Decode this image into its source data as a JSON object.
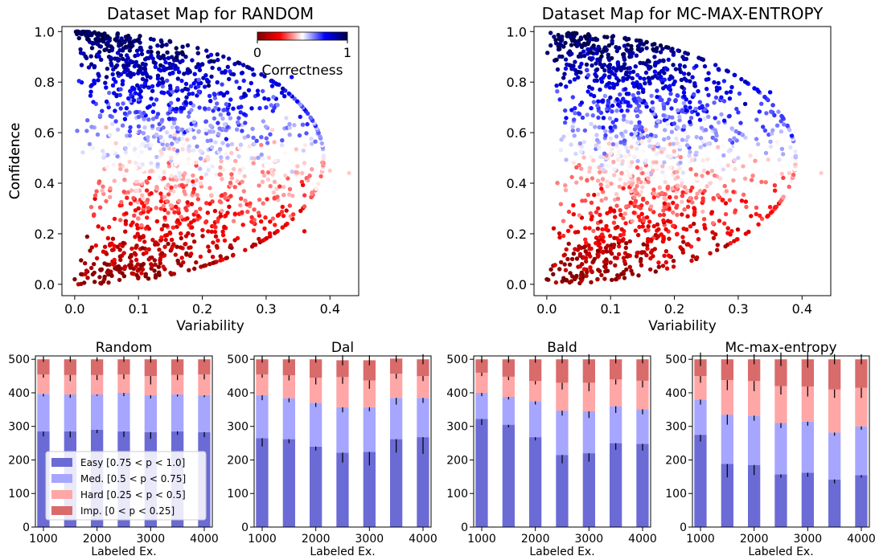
{
  "colors": {
    "easy": "#6b6bd6",
    "medium": "#a6a6ff",
    "hard": "#ffa6a6",
    "impossible": "#d96b6b",
    "errbar": "#000000"
  },
  "colorbar": {
    "label": "Correctness",
    "min_label": "0",
    "max_label": "1",
    "colormap": "seismic"
  },
  "chart_data": [
    {
      "type": "scatter",
      "title": "Dataset Map for RANDOM",
      "xlabel": "Variability",
      "ylabel": "Confidence",
      "xlim": [
        -0.02,
        0.445
      ],
      "ylim": [
        -0.045,
        1.02
      ],
      "xticks": [
        0.0,
        0.1,
        0.2,
        0.3,
        0.4
      ],
      "xtick_labels": [
        "0.0",
        "0.1",
        "0.2",
        "0.3",
        "0.4"
      ],
      "yticks": [
        0.0,
        0.2,
        0.4,
        0.6,
        0.8,
        1.0
      ],
      "ytick_labels": [
        "0.0",
        "0.2",
        "0.4",
        "0.6",
        "0.8",
        "1.0"
      ],
      "color_by": "Correctness",
      "seed": 11,
      "num_points": 1500,
      "points": [
        [
          0.0,
          0.02,
          0.0
        ],
        [
          0.01,
          0.04,
          0.0
        ],
        [
          0.02,
          0.05,
          0.0
        ],
        [
          0.03,
          0.08,
          0.05
        ],
        [
          0.05,
          0.12,
          0.08
        ],
        [
          0.06,
          0.18,
          0.1
        ],
        [
          0.08,
          0.25,
          0.14
        ],
        [
          0.1,
          0.3,
          0.2
        ],
        [
          0.12,
          0.36,
          0.25
        ],
        [
          0.14,
          0.42,
          0.3
        ],
        [
          0.16,
          0.47,
          0.4
        ],
        [
          0.2,
          0.52,
          0.55
        ],
        [
          0.24,
          0.55,
          0.6
        ],
        [
          0.28,
          0.58,
          0.65
        ],
        [
          0.3,
          0.47,
          0.5
        ],
        [
          0.33,
          0.43,
          0.45
        ],
        [
          0.36,
          0.48,
          0.45
        ],
        [
          0.4,
          0.45,
          0.45
        ],
        [
          0.43,
          0.44,
          0.45
        ],
        [
          0.36,
          0.21,
          0.2
        ],
        [
          0.02,
          0.97,
          1.0
        ],
        [
          0.05,
          0.95,
          1.0
        ],
        [
          0.08,
          0.94,
          1.0
        ],
        [
          0.12,
          0.92,
          1.0
        ],
        [
          0.16,
          0.9,
          1.0
        ],
        [
          0.2,
          0.87,
          0.95
        ],
        [
          0.24,
          0.86,
          0.85
        ],
        [
          0.28,
          0.83,
          0.8
        ],
        [
          0.32,
          0.79,
          0.75
        ],
        [
          0.34,
          0.82,
          0.75
        ],
        [
          0.3,
          0.7,
          0.7
        ],
        [
          0.15,
          0.75,
          0.85
        ],
        [
          0.1,
          0.6,
          0.75
        ],
        [
          0.05,
          0.82,
          0.95
        ]
      ]
    },
    {
      "type": "scatter",
      "title": "Dataset Map for MC-MAX-ENTROPY",
      "xlabel": "Variability",
      "ylabel": "Confidence",
      "xlim": [
        -0.02,
        0.445
      ],
      "ylim": [
        -0.045,
        1.02
      ],
      "xticks": [
        0.0,
        0.1,
        0.2,
        0.3,
        0.4
      ],
      "xtick_labels": [
        "0.0",
        "0.1",
        "0.2",
        "0.3",
        "0.4"
      ],
      "yticks": [
        0.0,
        0.2,
        0.4,
        0.6,
        0.8,
        1.0
      ],
      "ytick_labels": [
        "0.0",
        "0.2",
        "0.4",
        "0.6",
        "0.8",
        "1.0"
      ],
      "color_by": "Correctness",
      "seed": 29,
      "num_points": 1500,
      "points": [
        [
          0.0,
          0.02,
          0.0
        ],
        [
          0.01,
          0.04,
          0.0
        ],
        [
          0.02,
          0.06,
          0.0
        ],
        [
          0.04,
          0.1,
          0.05
        ],
        [
          0.06,
          0.15,
          0.08
        ],
        [
          0.08,
          0.22,
          0.12
        ],
        [
          0.1,
          0.3,
          0.2
        ],
        [
          0.12,
          0.38,
          0.28
        ],
        [
          0.15,
          0.44,
          0.35
        ],
        [
          0.18,
          0.5,
          0.5
        ],
        [
          0.22,
          0.55,
          0.6
        ],
        [
          0.26,
          0.58,
          0.65
        ],
        [
          0.3,
          0.5,
          0.55
        ],
        [
          0.34,
          0.48,
          0.5
        ],
        [
          0.38,
          0.44,
          0.45
        ],
        [
          0.43,
          0.44,
          0.45
        ],
        [
          0.28,
          0.15,
          0.1
        ],
        [
          0.32,
          0.27,
          0.2
        ],
        [
          0.02,
          0.97,
          1.0
        ],
        [
          0.05,
          0.95,
          1.0
        ],
        [
          0.09,
          0.93,
          1.0
        ],
        [
          0.13,
          0.9,
          1.0
        ],
        [
          0.17,
          0.87,
          0.95
        ],
        [
          0.21,
          0.84,
          0.85
        ],
        [
          0.25,
          0.81,
          0.8
        ],
        [
          0.29,
          0.78,
          0.78
        ],
        [
          0.33,
          0.77,
          0.75
        ],
        [
          0.35,
          0.76,
          0.75
        ],
        [
          0.3,
          0.68,
          0.7
        ],
        [
          0.15,
          0.72,
          0.85
        ],
        [
          0.1,
          0.62,
          0.75
        ],
        [
          0.05,
          0.84,
          0.95
        ]
      ]
    },
    {
      "type": "bar",
      "title": "Random",
      "xlabel": "Labeled Ex.",
      "stacked": true,
      "categories": [
        1000,
        1500,
        2000,
        2500,
        3000,
        3500,
        4000
      ],
      "xticks": [
        1000,
        2000,
        3000,
        4000
      ],
      "xtick_labels": [
        "1000",
        "2000",
        "3000",
        "4000"
      ],
      "yticks": [
        0,
        100,
        200,
        300,
        400,
        500
      ],
      "ytick_labels": [
        "0",
        "100",
        "200",
        "300",
        "400",
        "500"
      ],
      "ylim": [
        0,
        510
      ],
      "legend": "lower-left",
      "series": [
        {
          "name": "Easy [0.75 < p < 1.0]",
          "color_key": "easy",
          "values": [
            285,
            285,
            290,
            285,
            283,
            285,
            283
          ],
          "err": [
            15,
            18,
            10,
            17,
            20,
            10,
            15
          ]
        },
        {
          "name": "Med. [0.5 < p < 0.75]",
          "color_key": "medium",
          "values": [
            112,
            110,
            105,
            115,
            110,
            110,
            110
          ],
          "err": [
            8,
            10,
            4,
            10,
            10,
            6,
            6
          ]
        },
        {
          "name": "Hard [0.25 < p < 0.5]",
          "color_key": "hard",
          "values": [
            58,
            58,
            58,
            55,
            57,
            58,
            62
          ],
          "err": [
            10,
            18,
            15,
            14,
            25,
            15,
            15
          ]
        },
        {
          "name": "Imp. [0 < p < 0.25]",
          "color_key": "impossible",
          "values": [
            45,
            47,
            47,
            45,
            50,
            47,
            45
          ],
          "err": [
            8,
            8,
            6,
            8,
            10,
            8,
            8
          ]
        }
      ]
    },
    {
      "type": "bar",
      "title": "Dal",
      "xlabel": "Labeled Ex.",
      "stacked": true,
      "categories": [
        1000,
        1500,
        2000,
        2500,
        3000,
        3500,
        4000
      ],
      "xticks": [
        1000,
        2000,
        3000,
        4000
      ],
      "xtick_labels": [
        "1000",
        "2000",
        "3000",
        "4000"
      ],
      "yticks": [
        0,
        100,
        200,
        300,
        400,
        500
      ],
      "ytick_labels": [
        "0",
        "100",
        "200",
        "300",
        "400",
        "500"
      ],
      "ylim": [
        0,
        510
      ],
      "series": [
        {
          "name": "Easy [0.75 < p < 1.0]",
          "color_key": "easy",
          "values": [
            265,
            262,
            240,
            222,
            224,
            262,
            268
          ],
          "err": [
            25,
            12,
            12,
            30,
            40,
            40,
            50
          ]
        },
        {
          "name": "Med. [0.5 < p < 0.75]",
          "color_key": "medium",
          "values": [
            128,
            122,
            130,
            135,
            133,
            123,
            117
          ],
          "err": [
            15,
            12,
            12,
            15,
            12,
            20,
            15
          ]
        },
        {
          "name": "Hard [0.25 < p < 0.5]",
          "color_key": "hard",
          "values": [
            62,
            68,
            75,
            90,
            80,
            72,
            65
          ],
          "err": [
            10,
            15,
            20,
            20,
            25,
            15,
            15
          ]
        },
        {
          "name": "Imp. [0 < p < 0.25]",
          "color_key": "impossible",
          "values": [
            45,
            48,
            55,
            50,
            60,
            45,
            50
          ],
          "err": [
            10,
            10,
            10,
            15,
            15,
            10,
            15
          ]
        }
      ]
    },
    {
      "type": "bar",
      "title": "Bald",
      "xlabel": "Labeled Ex.",
      "stacked": true,
      "categories": [
        1000,
        1500,
        2000,
        2500,
        3000,
        3500,
        4000
      ],
      "xticks": [
        1000,
        2000,
        3000,
        4000
      ],
      "xtick_labels": [
        "1000",
        "2000",
        "3000",
        "4000"
      ],
      "yticks": [
        0,
        100,
        200,
        300,
        400,
        500
      ],
      "ytick_labels": [
        "0",
        "100",
        "200",
        "300",
        "400",
        "500"
      ],
      "ylim": [
        0,
        510
      ],
      "series": [
        {
          "name": "Easy [0.75 < p < 1.0]",
          "color_key": "easy",
          "values": [
            322,
            305,
            268,
            215,
            220,
            250,
            248
          ],
          "err": [
            18,
            8,
            10,
            25,
            25,
            20,
            20
          ]
        },
        {
          "name": "Med. [0.5 < p < 0.75]",
          "color_key": "medium",
          "values": [
            78,
            83,
            107,
            132,
            125,
            110,
            103
          ],
          "err": [
            10,
            8,
            10,
            15,
            20,
            20,
            15
          ]
        },
        {
          "name": "Hard [0.25 < p < 0.5]",
          "color_key": "hard",
          "values": [
            60,
            60,
            60,
            83,
            85,
            80,
            85
          ],
          "err": [
            10,
            10,
            10,
            20,
            25,
            15,
            20
          ]
        },
        {
          "name": "Imp. [0 < p < 0.25]",
          "color_key": "impossible",
          "values": [
            40,
            52,
            65,
            70,
            70,
            60,
            64
          ],
          "err": [
            10,
            10,
            10,
            12,
            15,
            12,
            12
          ]
        }
      ]
    },
    {
      "type": "bar",
      "title": "Mc-max-entropy",
      "xlabel": "Labeled Ex.",
      "stacked": true,
      "categories": [
        1000,
        1500,
        2000,
        2500,
        3000,
        3500,
        4000
      ],
      "xticks": [
        1000,
        2000,
        3000,
        4000
      ],
      "xtick_labels": [
        "1000",
        "2000",
        "3000",
        "4000"
      ],
      "yticks": [
        0,
        100,
        200,
        300,
        400,
        500
      ],
      "ytick_labels": [
        "0",
        "100",
        "200",
        "300",
        "400",
        "500"
      ],
      "ylim": [
        0,
        510
      ],
      "series": [
        {
          "name": "Easy [0.75 < p < 1.0]",
          "color_key": "easy",
          "values": [
            275,
            188,
            185,
            157,
            162,
            142,
            155
          ],
          "err": [
            20,
            40,
            30,
            10,
            12,
            12,
            8
          ]
        },
        {
          "name": "Med. [0.5 < p < 0.75]",
          "color_key": "medium",
          "values": [
            105,
            147,
            147,
            153,
            152,
            140,
            145
          ],
          "err": [
            15,
            30,
            15,
            15,
            12,
            10,
            10
          ]
        },
        {
          "name": "Hard [0.25 < p < 0.5]",
          "color_key": "hard",
          "values": [
            70,
            103,
            103,
            110,
            105,
            128,
            115
          ],
          "err": [
            20,
            30,
            30,
            25,
            30,
            25,
            30
          ]
        },
        {
          "name": "Imp. [0 < p < 0.25]",
          "color_key": "impossible",
          "values": [
            50,
            62,
            65,
            80,
            81,
            90,
            85
          ],
          "err": [
            20,
            15,
            15,
            20,
            25,
            15,
            15
          ]
        }
      ]
    }
  ]
}
